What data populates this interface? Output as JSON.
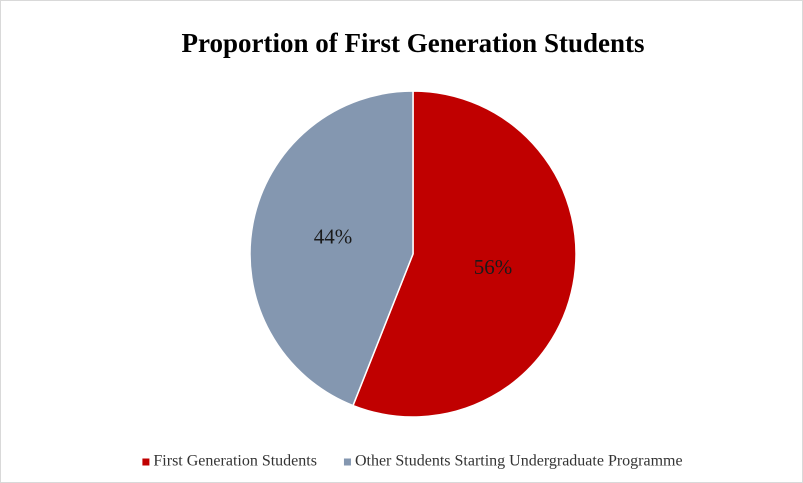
{
  "chart_data": {
    "type": "pie",
    "title": "Proportion of First Generation Students",
    "categories": [
      "First Generation Students",
      "Other Students Starting Undergraduate Programme"
    ],
    "values": [
      56,
      44
    ],
    "value_labels": [
      "56%",
      "44%"
    ],
    "colors": [
      "#c00000",
      "#8497b0"
    ],
    "legend": "bottom"
  }
}
